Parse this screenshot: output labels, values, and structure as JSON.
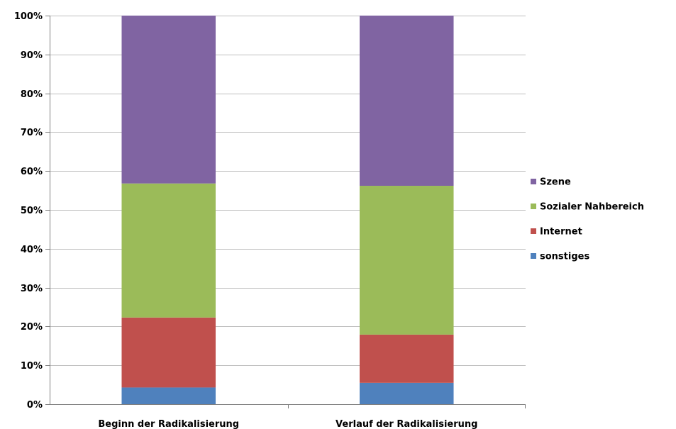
{
  "chart_data": {
    "type": "bar",
    "stacked": true,
    "percent_stacked": true,
    "categories": [
      "Beginn der Radikalisierung",
      "Verlauf der Radikalisierung"
    ],
    "series": [
      {
        "name": "sonstiges",
        "values": [
          4.3,
          5.5
        ],
        "color": "#4f81bd"
      },
      {
        "name": "Internet",
        "values": [
          18.0,
          12.4
        ],
        "color": "#c0504d"
      },
      {
        "name": "Sozialer Nahbereich",
        "values": [
          34.5,
          38.3
        ],
        "color": "#9bbb59"
      },
      {
        "name": "Szene",
        "values": [
          43.2,
          43.8
        ],
        "color": "#8064a2"
      }
    ],
    "ylim": [
      0,
      100
    ],
    "yticks": [
      "0%",
      "10%",
      "20%",
      "30%",
      "40%",
      "50%",
      "60%",
      "70%",
      "80%",
      "90%",
      "100%"
    ],
    "grid": true,
    "legend": {
      "position": "right",
      "order": [
        "Szene",
        "Sozialer Nahbereich",
        "Internet",
        "sonstiges"
      ]
    },
    "colors": {
      "gridline": "#bfbfbf",
      "axis": "#7f7f7f"
    }
  }
}
